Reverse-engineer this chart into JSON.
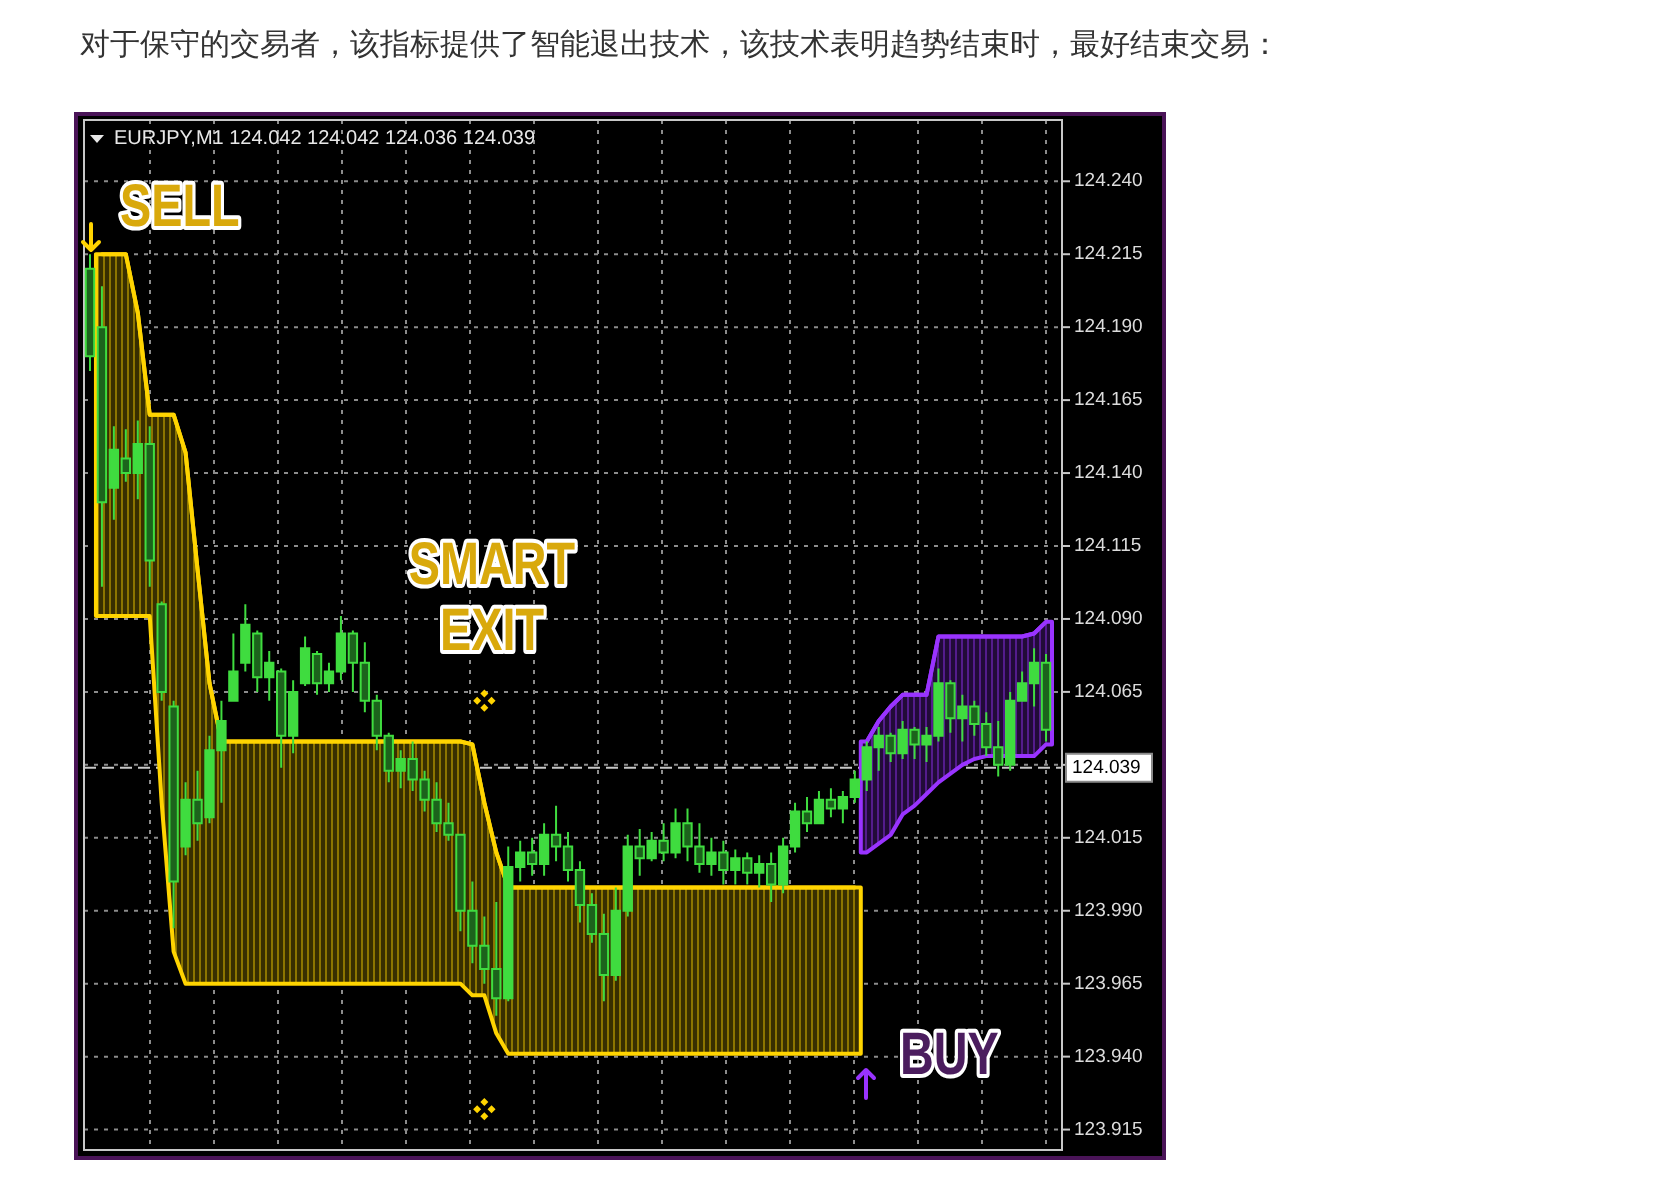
{
  "chart_data": {
    "type": "candlestick",
    "title": "对于保守的交易者，该指标提供了智能退出技术，该技术表明趋势结束时，最好结束交易：",
    "subtitle": "EURJPY,M1 124.042 124.042 124.036 124.039",
    "categories": [
      null,
      null,
      null,
      null,
      null,
      null,
      null,
      null,
      null,
      null,
      null,
      null,
      null,
      null,
      null,
      null,
      null,
      null,
      null,
      null,
      null,
      null,
      null,
      null,
      null,
      null,
      null,
      null,
      null,
      null,
      null,
      null,
      null,
      null,
      null,
      null,
      null,
      null,
      null,
      null,
      null,
      null,
      null,
      null,
      null,
      null,
      null,
      null,
      null,
      null,
      null,
      null,
      null,
      null,
      null,
      null,
      null,
      null,
      null,
      null,
      null,
      null,
      null,
      null,
      null,
      null,
      null,
      null,
      null,
      null,
      null,
      null,
      null,
      null,
      null,
      null,
      null,
      null,
      null,
      null,
      null
    ],
    "color": "#3fdc3f",
    "ohlc": [
      [
        124.21,
        124.215,
        124.175,
        124.18
      ],
      [
        124.19,
        124.204,
        124.101,
        124.13
      ],
      [
        124.135,
        124.156,
        124.124,
        124.148
      ],
      [
        124.145,
        124.155,
        124.137,
        124.14
      ],
      [
        124.14,
        124.158,
        124.131,
        124.15
      ],
      [
        124.15,
        124.156,
        124.101,
        124.11
      ],
      [
        124.095,
        124.096,
        124.062,
        124.065
      ],
      [
        124.06,
        124.062,
        123.984,
        124.0
      ],
      [
        124.012,
        124.034,
        124.009,
        124.028
      ],
      [
        124.028,
        124.038,
        124.014,
        124.02
      ],
      [
        124.022,
        124.05,
        124.02,
        124.045
      ],
      [
        124.045,
        124.062,
        124.027,
        124.055
      ],
      [
        124.062,
        124.085,
        124.062,
        124.072
      ],
      [
        124.075,
        124.095,
        124.072,
        124.088
      ],
      [
        124.085,
        124.086,
        124.065,
        124.07
      ],
      [
        124.07,
        124.079,
        124.062,
        124.075
      ],
      [
        124.072,
        124.073,
        124.039,
        124.05
      ],
      [
        124.05,
        124.069,
        124.044,
        124.065
      ],
      [
        124.068,
        124.084,
        124.067,
        124.08
      ],
      [
        124.078,
        124.079,
        124.064,
        124.068
      ],
      [
        124.068,
        124.075,
        124.065,
        124.072
      ],
      [
        124.072,
        124.091,
        124.069,
        124.085
      ],
      [
        124.085,
        124.086,
        124.065,
        124.075
      ],
      [
        124.075,
        124.082,
        124.058,
        124.062
      ],
      [
        124.062,
        124.064,
        124.045,
        124.05
      ],
      [
        124.05,
        124.051,
        124.034,
        124.038
      ],
      [
        124.038,
        124.045,
        124.032,
        124.042
      ],
      [
        124.042,
        124.048,
        124.031,
        124.035
      ],
      [
        124.035,
        124.038,
        124.024,
        124.028
      ],
      [
        124.028,
        124.034,
        124.017,
        124.02
      ],
      [
        124.02,
        124.027,
        124.014,
        124.016
      ],
      [
        124.016,
        124.016,
        123.983,
        123.99
      ],
      [
        123.99,
        124.0,
        123.972,
        123.978
      ],
      [
        123.978,
        123.988,
        123.965,
        123.97
      ],
      [
        123.97,
        123.993,
        123.954,
        123.96
      ],
      [
        123.96,
        124.012,
        123.959,
        124.005
      ],
      [
        124.005,
        124.014,
        124.0,
        124.01
      ],
      [
        124.01,
        124.015,
        124.002,
        124.006
      ],
      [
        124.006,
        124.02,
        124.002,
        124.016
      ],
      [
        124.016,
        124.026,
        124.007,
        124.012
      ],
      [
        124.012,
        124.017,
        124.0,
        124.004
      ],
      [
        124.004,
        124.007,
        123.986,
        123.992
      ],
      [
        123.992,
        123.996,
        123.979,
        123.982
      ],
      [
        123.982,
        123.989,
        123.959,
        123.968
      ],
      [
        123.968,
        123.998,
        123.966,
        123.99
      ],
      [
        123.99,
        124.016,
        123.988,
        124.012
      ],
      [
        124.012,
        124.018,
        124.002,
        124.008
      ],
      [
        124.008,
        124.017,
        124.007,
        124.014
      ],
      [
        124.014,
        124.02,
        124.007,
        124.01
      ],
      [
        124.01,
        124.025,
        124.008,
        124.02
      ],
      [
        124.02,
        124.025,
        124.007,
        124.012
      ],
      [
        124.012,
        124.02,
        124.003,
        124.006
      ],
      [
        124.006,
        124.015,
        124.002,
        124.01
      ],
      [
        124.01,
        124.014,
        123.999,
        124.004
      ],
      [
        124.004,
        124.011,
        123.999,
        124.008
      ],
      [
        124.008,
        124.01,
        123.999,
        124.003
      ],
      [
        124.003,
        124.009,
        123.998,
        124.006
      ],
      [
        124.006,
        124.01,
        123.993,
        123.999
      ],
      [
        123.999,
        124.015,
        123.996,
        124.012
      ],
      [
        124.012,
        124.027,
        124.01,
        124.024
      ],
      [
        124.024,
        124.029,
        124.017,
        124.02
      ],
      [
        124.02,
        124.031,
        124.02,
        124.028
      ],
      [
        124.028,
        124.032,
        124.022,
        124.025
      ],
      [
        124.025,
        124.031,
        124.02,
        124.029
      ],
      [
        124.029,
        124.038,
        124.027,
        124.035
      ],
      [
        124.035,
        124.048,
        124.031,
        124.046
      ],
      [
        124.046,
        124.053,
        124.038,
        124.05
      ],
      [
        124.05,
        124.051,
        124.041,
        124.044
      ],
      [
        124.044,
        124.055,
        124.042,
        124.052
      ],
      [
        124.052,
        124.053,
        124.042,
        124.047
      ],
      [
        124.047,
        124.053,
        124.041,
        124.05
      ],
      [
        124.05,
        124.073,
        124.048,
        124.068
      ],
      [
        124.068,
        124.069,
        124.051,
        124.056
      ],
      [
        124.056,
        124.064,
        124.048,
        124.06
      ],
      [
        124.06,
        124.062,
        124.05,
        124.054
      ],
      [
        124.054,
        124.058,
        124.043,
        124.046
      ],
      [
        124.046,
        124.055,
        124.036,
        124.04
      ],
      [
        124.04,
        124.065,
        124.038,
        124.062
      ],
      [
        124.062,
        124.072,
        124.062,
        124.068
      ],
      [
        124.068,
        124.08,
        124.06,
        124.075
      ],
      [
        124.075,
        124.078,
        124.048,
        124.052
      ]
    ],
    "series": [
      {
        "type": "line",
        "color": "#ffd400",
        "values": [
          null,
          124.215,
          124.215,
          124.215,
          124.195,
          124.16,
          124.16,
          124.16,
          124.147,
          124.107,
          124.068,
          124.048,
          124.048,
          124.048,
          124.048,
          124.048,
          124.048,
          124.048,
          124.048,
          124.048,
          124.048,
          124.048,
          124.048,
          124.048,
          124.048,
          124.048,
          124.048,
          124.048,
          124.048,
          124.048,
          124.048,
          124.048,
          124.047,
          124.027,
          124.01,
          123.998,
          123.998,
          123.998,
          123.998,
          123.998,
          123.998,
          123.998,
          123.998,
          123.998,
          123.998,
          123.998,
          123.998,
          123.998,
          123.998,
          123.998,
          123.998,
          123.998,
          123.998,
          123.998,
          123.998,
          123.998,
          123.998,
          123.998,
          123.998,
          123.998,
          123.998,
          123.998,
          123.998,
          123.998,
          123.998,
          null,
          null,
          null,
          null,
          null,
          null,
          null,
          null,
          null,
          null,
          null,
          null,
          null,
          null,
          null,
          null
        ],
        "upper": [
          null,
          124.215,
          124.215,
          124.215,
          124.195,
          124.16,
          124.16,
          124.16,
          124.147,
          124.107,
          124.068,
          124.048,
          124.048,
          124.048,
          124.048,
          124.048,
          124.048,
          124.048,
          124.048,
          124.048,
          124.048,
          124.048,
          124.048,
          124.048,
          124.048,
          124.048,
          124.048,
          124.048,
          124.048,
          124.048,
          124.048,
          124.048,
          124.047,
          124.027,
          124.01,
          123.998,
          123.998,
          123.998,
          123.998,
          123.998,
          123.998,
          123.998,
          123.998,
          123.998,
          123.998,
          123.998,
          123.998,
          123.998,
          123.998,
          123.998,
          123.998,
          123.998,
          123.998,
          123.998,
          123.998,
          123.998,
          123.998,
          123.998,
          123.998,
          123.998,
          123.998,
          123.998,
          123.998,
          123.998,
          123.998,
          null,
          null,
          null,
          null,
          null,
          null,
          null,
          null,
          null,
          null,
          null,
          null,
          null,
          null,
          null,
          null
        ],
        "lower": [
          null,
          124.091,
          124.091,
          124.091,
          124.091,
          124.091,
          124.027,
          123.976,
          123.965,
          123.965,
          123.965,
          123.965,
          123.965,
          123.965,
          123.965,
          123.965,
          123.965,
          123.965,
          123.965,
          123.965,
          123.965,
          123.965,
          123.965,
          123.965,
          123.965,
          123.965,
          123.965,
          123.965,
          123.965,
          123.965,
          123.965,
          123.965,
          123.961,
          123.961,
          123.948,
          123.941,
          123.941,
          123.941,
          123.941,
          123.941,
          123.941,
          123.941,
          123.941,
          123.941,
          123.941,
          123.941,
          123.941,
          123.941,
          123.941,
          123.941,
          123.941,
          123.941,
          123.941,
          123.941,
          123.941,
          123.941,
          123.941,
          123.941,
          123.941,
          123.941,
          123.941,
          123.941,
          123.941,
          123.941,
          123.941,
          null,
          null,
          null,
          null,
          null,
          null,
          null,
          null,
          null,
          null,
          null,
          null,
          null,
          null,
          null,
          null
        ]
      },
      {
        "type": "line",
        "color": "#9933ff",
        "values": [
          null,
          null,
          null,
          null,
          null,
          null,
          null,
          null,
          null,
          null,
          null,
          null,
          null,
          null,
          null,
          null,
          null,
          null,
          null,
          null,
          null,
          null,
          null,
          null,
          null,
          null,
          null,
          null,
          null,
          null,
          null,
          null,
          null,
          null,
          null,
          null,
          null,
          null,
          null,
          null,
          null,
          null,
          null,
          null,
          null,
          null,
          null,
          null,
          null,
          null,
          null,
          null,
          null,
          null,
          null,
          null,
          null,
          null,
          null,
          null,
          null,
          null,
          null,
          null,
          null,
          124.048,
          124.055,
          124.06,
          124.064,
          124.064,
          124.064,
          124.084,
          124.084,
          124.084,
          124.084,
          124.084,
          124.084,
          124.084,
          124.084,
          124.085,
          124.089
        ],
        "upper": [
          null,
          null,
          null,
          null,
          null,
          null,
          null,
          null,
          null,
          null,
          null,
          null,
          null,
          null,
          null,
          null,
          null,
          null,
          null,
          null,
          null,
          null,
          null,
          null,
          null,
          null,
          null,
          null,
          null,
          null,
          null,
          null,
          null,
          null,
          null,
          null,
          null,
          null,
          null,
          null,
          null,
          null,
          null,
          null,
          null,
          null,
          null,
          null,
          null,
          null,
          null,
          null,
          null,
          null,
          null,
          null,
          null,
          null,
          null,
          null,
          null,
          null,
          null,
          null,
          null,
          124.048,
          124.055,
          124.06,
          124.064,
          124.064,
          124.064,
          124.084,
          124.084,
          124.084,
          124.084,
          124.084,
          124.084,
          124.084,
          124.084,
          124.085,
          124.089
        ],
        "lower": [
          null,
          null,
          null,
          null,
          null,
          null,
          null,
          null,
          null,
          null,
          null,
          null,
          null,
          null,
          null,
          null,
          null,
          null,
          null,
          null,
          null,
          null,
          null,
          null,
          null,
          null,
          null,
          null,
          null,
          null,
          null,
          null,
          null,
          null,
          null,
          null,
          null,
          null,
          null,
          null,
          null,
          null,
          null,
          null,
          null,
          null,
          null,
          null,
          null,
          null,
          null,
          null,
          null,
          null,
          null,
          null,
          null,
          null,
          null,
          null,
          null,
          null,
          null,
          null,
          null,
          124.01,
          124.013,
          124.016,
          124.023,
          124.026,
          124.03,
          124.034,
          124.037,
          124.04,
          124.042,
          124.043,
          124.043,
          124.043,
          124.043,
          124.043,
          124.047
        ]
      },
      {
        "type": "scatter",
        "color": "#ffd400",
        "marker": "diamond",
        "values": [
          null,
          null,
          null,
          null,
          null,
          null,
          null,
          null,
          null,
          null,
          null,
          null,
          null,
          null,
          null,
          null,
          null,
          null,
          null,
          null,
          null,
          null,
          null,
          null,
          null,
          null,
          null,
          null,
          null,
          null,
          null,
          null,
          null,
          124.062,
          null,
          null,
          null,
          null,
          null,
          null,
          null,
          null,
          null,
          null,
          null,
          null,
          null,
          null,
          null,
          null,
          null,
          null,
          null,
          null,
          null,
          null,
          null,
          null,
          null,
          null,
          null,
          null,
          null,
          null,
          null,
          null,
          null,
          null,
          null,
          null,
          null,
          null,
          null,
          null,
          null,
          null,
          null,
          null,
          null,
          null,
          null
        ]
      },
      {
        "type": "scatter",
        "color": "#ffd400",
        "marker": "diamond",
        "values": [
          null,
          null,
          null,
          null,
          null,
          null,
          null,
          null,
          null,
          null,
          null,
          null,
          null,
          null,
          null,
          null,
          null,
          null,
          null,
          null,
          null,
          null,
          null,
          null,
          null,
          null,
          null,
          null,
          null,
          null,
          null,
          null,
          null,
          123.922,
          null,
          null,
          null,
          null,
          null,
          null,
          null,
          null,
          null,
          null,
          null,
          null,
          null,
          null,
          null,
          null,
          null,
          null,
          null,
          null,
          null,
          null,
          null,
          null,
          null,
          null,
          null,
          null,
          null,
          null,
          null,
          null,
          null,
          null,
          null,
          null,
          null,
          null,
          null,
          null,
          null,
          null,
          null,
          null,
          null,
          null,
          null
        ]
      }
    ],
    "ylim": [
      123.908,
      124.261
    ],
    "yticks": [
      {
        "value": 123.915,
        "label": "123.915"
      },
      {
        "value": 123.94,
        "label": "123.940"
      },
      {
        "value": 123.965,
        "label": "123.965"
      },
      {
        "value": 123.99,
        "label": "123.990"
      },
      {
        "value": 124.015,
        "label": "124.015"
      },
      {
        "value": 124.04,
        "label": null
      },
      {
        "value": 124.065,
        "label": "124.065"
      },
      {
        "value": 124.09,
        "label": "124.090"
      },
      {
        "value": 124.115,
        "label": "124.115"
      },
      {
        "value": 124.14,
        "label": "124.140"
      },
      {
        "value": 124.165,
        "label": "124.165"
      },
      {
        "value": 124.19,
        "label": "124.190"
      },
      {
        "value": 124.215,
        "label": "124.215"
      },
      {
        "value": 124.24,
        "label": "124.240"
      }
    ],
    "ref_lines": [
      {
        "axis": "y",
        "value": 124.039,
        "label": "124.039",
        "color": "#c8c8c8",
        "line_style": "dashed"
      }
    ],
    "annotations": [
      "SELL",
      "SMART EXIT",
      "BUY"
    ],
    "grid": true,
    "tick_labels": "y"
  }
}
